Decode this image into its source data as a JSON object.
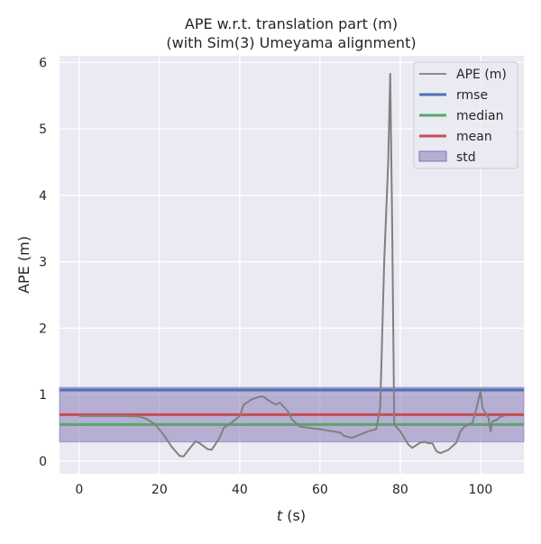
{
  "chart_data": {
    "type": "line",
    "title": "APE w.r.t. translation part (m)",
    "subtitle": "(with Sim(3) Umeyama alignment)",
    "xlabel_italic": "t",
    "xlabel_unit": " (s)",
    "ylabel": "APE (m)",
    "xlim": [
      -4.9,
      110.8
    ],
    "ylim": [
      -0.19,
      6.1
    ],
    "xticks": [
      0,
      20,
      40,
      60,
      80,
      100
    ],
    "yticks": [
      0,
      1,
      2,
      3,
      4,
      5,
      6
    ],
    "grid": true,
    "legend_placement": "top-right",
    "series": [
      {
        "name": "APE (m)",
        "color": "#808080",
        "x": [
          0,
          5,
          10,
          15,
          17,
          19,
          21,
          23,
          25,
          26,
          27,
          29,
          30,
          32,
          33,
          35,
          36,
          38,
          40,
          41,
          43,
          45,
          46,
          47,
          49,
          50,
          52,
          53,
          55,
          60,
          65,
          66,
          68,
          70,
          72,
          74,
          75,
          76,
          77,
          77.5,
          78,
          78.5,
          80,
          82,
          83,
          85,
          86,
          87,
          88,
          89,
          90,
          92,
          94,
          95,
          96,
          98,
          99,
          100,
          100.5,
          102,
          102.5,
          103,
          104,
          105,
          106
        ],
        "y": [
          0.68,
          0.68,
          0.68,
          0.67,
          0.63,
          0.55,
          0.4,
          0.22,
          0.08,
          0.07,
          0.15,
          0.3,
          0.27,
          0.18,
          0.17,
          0.35,
          0.5,
          0.58,
          0.68,
          0.85,
          0.93,
          0.97,
          0.97,
          0.92,
          0.85,
          0.88,
          0.75,
          0.63,
          0.52,
          0.48,
          0.43,
          0.38,
          0.35,
          0.4,
          0.45,
          0.48,
          0.8,
          3.0,
          4.5,
          5.83,
          3.5,
          0.55,
          0.45,
          0.25,
          0.2,
          0.28,
          0.29,
          0.27,
          0.27,
          0.15,
          0.12,
          0.17,
          0.28,
          0.45,
          0.52,
          0.58,
          0.8,
          1.05,
          0.8,
          0.65,
          0.45,
          0.6,
          0.62,
          0.67,
          0.68
        ]
      }
    ],
    "hlines": [
      {
        "name": "rmse",
        "value": 1.07,
        "color": "#4c72b0"
      },
      {
        "name": "median",
        "value": 0.55,
        "color": "#55a868"
      },
      {
        "name": "mean",
        "value": 0.7,
        "color": "#c44e52"
      }
    ],
    "band": {
      "name": "std",
      "low": 0.29,
      "high": 1.11,
      "color": "#8172b3"
    }
  }
}
